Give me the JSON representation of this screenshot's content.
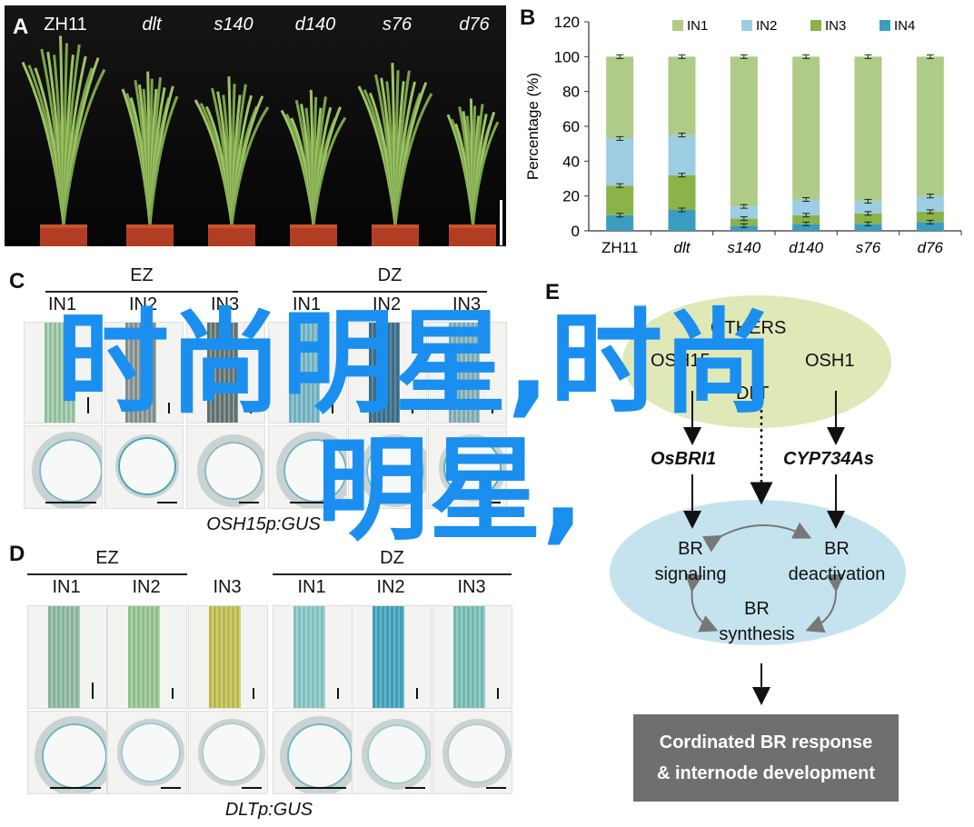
{
  "panels": {
    "a": "A",
    "b": "B",
    "c": "C",
    "d": "D",
    "e": "E"
  },
  "panelA": {
    "labels": [
      "ZH11",
      "dlt",
      "s140",
      "d140",
      "s76",
      "d76"
    ],
    "italic": [
      false,
      true,
      true,
      true,
      true,
      true
    ]
  },
  "chart_data": {
    "type": "bar",
    "stacked": true,
    "categories": [
      "ZH11",
      "dlt",
      "s140",
      "d140",
      "s76",
      "d76"
    ],
    "series": [
      {
        "name": "IN4",
        "values": [
          9,
          12,
          3,
          4,
          4,
          5
        ],
        "color": "#3b9ec0"
      },
      {
        "name": "IN3",
        "values": [
          17,
          20,
          4,
          5,
          6,
          6
        ],
        "color": "#8ab34a"
      },
      {
        "name": "IN2",
        "values": [
          27,
          23,
          7,
          9,
          7,
          9
        ],
        "color": "#9ccde2"
      },
      {
        "name": "IN1",
        "values": [
          47,
          45,
          86,
          82,
          83,
          80
        ],
        "color": "#aecb87"
      }
    ],
    "cumulative_error_points": [
      [
        9,
        26,
        53,
        100
      ],
      [
        12,
        32,
        55,
        100
      ],
      [
        3,
        7,
        14,
        100
      ],
      [
        4,
        9,
        18,
        100
      ],
      [
        4,
        10,
        17,
        100
      ],
      [
        5,
        11,
        20,
        100
      ]
    ],
    "ylabel": "Percentage (%)",
    "ylim": [
      0,
      120
    ],
    "yticks": [
      0,
      20,
      40,
      60,
      80,
      100,
      120
    ],
    "legend": [
      "IN1",
      "IN2",
      "IN3",
      "IN4"
    ],
    "legend_placement": "top"
  },
  "panelC": {
    "groups": [
      "EZ",
      "DZ"
    ],
    "cols": [
      "IN1",
      "IN2",
      "IN3",
      "IN1",
      "IN2",
      "IN3"
    ],
    "caption": "OSH15p:GUS"
  },
  "panelD": {
    "groups": [
      "EZ",
      "DZ"
    ],
    "cols": [
      "IN1",
      "IN2",
      "IN3",
      "IN1",
      "IN2",
      "IN3"
    ],
    "caption": "DLTp:GUS"
  },
  "panelE": {
    "others": "OTHERS",
    "osh15": "OSH15",
    "osh1": "OSH1",
    "dlt": "DLT",
    "osbri1": "OsBRI1",
    "cyp": "CYP734As",
    "br1": "BR",
    "sig": "signaling",
    "br2": "BR",
    "deact": "deactivation",
    "br3": "BR",
    "synth": "synthesis",
    "box1": "Cordinated BR response",
    "box2": "& internode development"
  },
  "watermark": {
    "line1": "时尚明星,时尚",
    "line2": "明星,"
  }
}
